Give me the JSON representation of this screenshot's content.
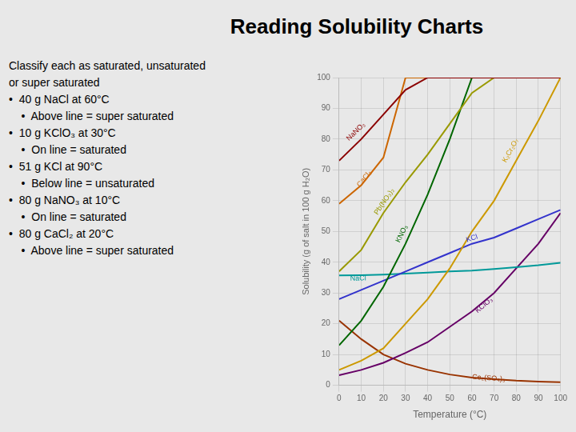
{
  "chart_data": {
    "type": "line",
    "title": "Reading Solubility Charts",
    "annotations": [
      "Classify each as saturated, unsaturated",
      "or super saturated",
      "•  40 g NaCl at 60°C",
      "    •  Above line = super saturated",
      "•  10 g KClO₃ at 30°C",
      "    •  On line = saturated",
      "•  51 g KCl at 90°C",
      "    •  Below line = unsaturated",
      "•  80 g NaNO₃ at 10°C",
      "    •  On line = saturated",
      "•  80 g CaCl₂ at 20°C",
      "    •  Above line = super saturated"
    ],
    "xlabel": "Temperature (°C)",
    "ylabel": "Solubility (g of salt in 100 g H₂O)",
    "x": [
      0,
      10,
      20,
      30,
      40,
      50,
      60,
      70,
      80,
      90,
      100
    ],
    "xlim": [
      0,
      100
    ],
    "ylim": [
      0,
      100
    ],
    "xticks": [
      0,
      10,
      20,
      30,
      40,
      50,
      60,
      70,
      80,
      90,
      100
    ],
    "yticks": [
      0,
      10,
      20,
      30,
      40,
      50,
      60,
      70,
      80,
      90,
      100
    ],
    "grid": true,
    "series": [
      {
        "name": "NaNO₃",
        "color": "#8B0000",
        "values": [
          73,
          80,
          88,
          96,
          100,
          100,
          100,
          100,
          100,
          100,
          100
        ],
        "label_x": 5,
        "label_y": 79
      },
      {
        "name": "CaCl₂",
        "color": "#cc6600",
        "values": [
          59,
          65,
          74,
          100,
          100,
          100,
          100,
          100,
          100,
          100,
          100
        ],
        "label_x": 10,
        "label_y": 64
      },
      {
        "name": "Pb(NO₃)₂",
        "color": "#999900",
        "values": [
          37,
          44,
          56,
          66,
          75,
          85,
          95,
          100,
          100,
          100,
          100
        ],
        "label_x": 18,
        "label_y": 55
      },
      {
        "name": "KNO₃",
        "color": "#006600",
        "values": [
          13,
          21,
          32,
          46,
          62,
          80,
          100,
          100,
          100,
          100,
          100
        ],
        "label_x": 28,
        "label_y": 46
      },
      {
        "name": "K₂Cr₂O₇",
        "color": "#cc9900",
        "values": [
          5,
          8,
          12,
          20,
          28,
          38,
          50,
          60,
          73,
          86,
          100
        ],
        "label_x": 76,
        "label_y": 72
      },
      {
        "name": "KCl",
        "color": "#3333cc",
        "values": [
          28,
          31,
          34,
          37,
          40,
          43,
          46,
          48,
          51,
          54,
          57
        ],
        "label_x": 58,
        "label_y": 46
      },
      {
        "name": "NaCl",
        "color": "#009999",
        "values": [
          35.7,
          35.8,
          36.0,
          36.3,
          36.6,
          37.0,
          37.3,
          37.8,
          38.4,
          39.0,
          39.8
        ],
        "label_x": 5,
        "label_y": 33.5
      },
      {
        "name": "KClO₃",
        "color": "#660066",
        "values": [
          3.3,
          5,
          7.3,
          10.5,
          14,
          19,
          24,
          30,
          38,
          46,
          56
        ],
        "label_x": 63,
        "label_y": 23
      },
      {
        "name": "Ce₂(SO₄)₃",
        "color": "#993300",
        "values": [
          21,
          15,
          10,
          7,
          5,
          3.5,
          2.5,
          2,
          1.5,
          1.2,
          1
        ],
        "label_x": 60,
        "label_y": 1.5
      }
    ]
  }
}
